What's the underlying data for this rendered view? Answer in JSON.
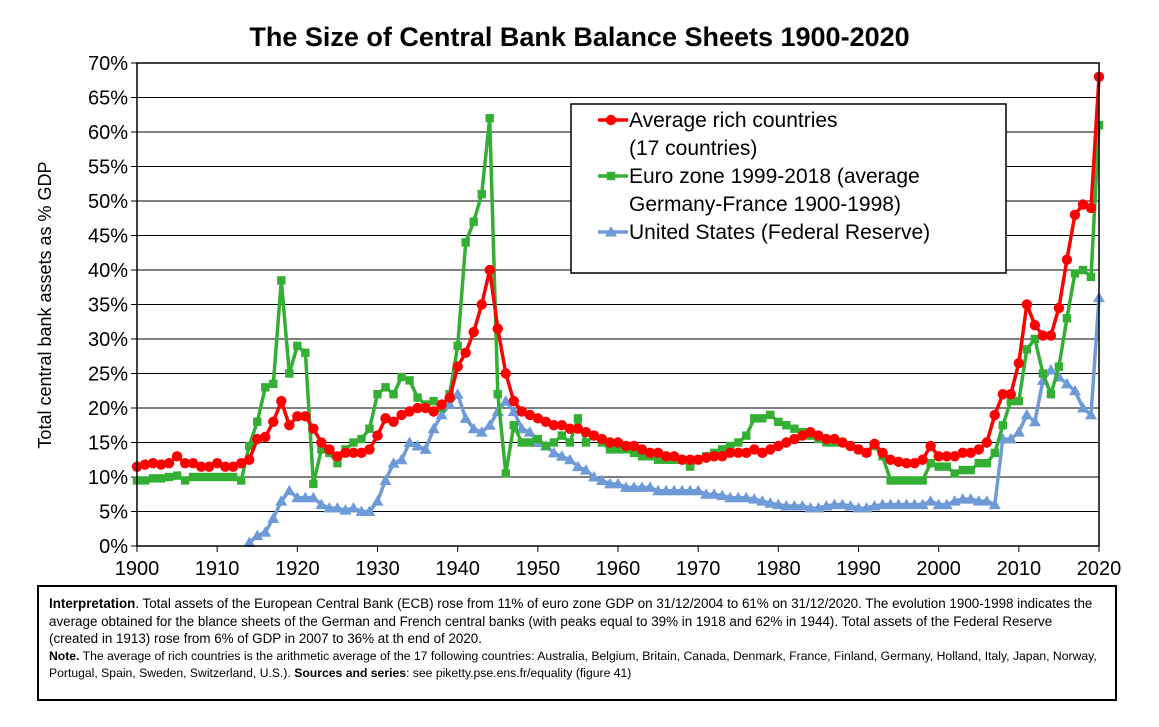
{
  "title": "The Size of Central Bank Balance Sheets 1900-2020",
  "notes": {
    "interpretation_label": "Interpretation",
    "interpretation_text": ". Total assets of the European Central Bank (ECB) rose from 11% of euro zone GDP on 31/12/2004 to 61% on 31/12/2020. The evolution 1900-1998 indicates the average obtained for the blance sheets of the German and French central banks (with peaks equal to 39% in 1918 and 62% in 1944). Total assets of the Federal Reserve (created in 1913) rose from 6% of GDP in 2007 to 36% at th end of 2020.",
    "note_label": "Note.",
    "note_text": " The average of rich countries is the arithmetic average of the 17 following countries: Australia, Belgium, Britain, Canada, Denmark, France, Finland, Germany, Holland, Italy, Japan, Norway, Portugal, Spain, Sweden, Switzerland, U.S.).",
    "sources_label": "Sources and series",
    "sources_text": ": see piketty.pse.ens.fr/equality (figure 41)"
  },
  "chart_data": {
    "type": "line",
    "title": "The Size of Central Bank Balance Sheets 1900-2020",
    "xlabel": "",
    "ylabel": "Total central bank assets as % GDP",
    "xlim": [
      1900,
      2020
    ],
    "ylim": [
      0,
      70
    ],
    "xticks": [
      "1900",
      "1910",
      "1920",
      "1930",
      "1940",
      "1950",
      "1960",
      "1970",
      "1980",
      "1990",
      "2000",
      "2010",
      "2020"
    ],
    "yticks": [
      "0%",
      "5%",
      "10%",
      "15%",
      "20%",
      "25%",
      "30%",
      "35%",
      "40%",
      "45%",
      "50%",
      "55%",
      "60%",
      "65%",
      "70%"
    ],
    "grid": "horizontal",
    "legend_position": "top-right",
    "legend": [
      {
        "lines": [
          "Average rich countries",
          "(17 countries)"
        ],
        "color": "#ff0000",
        "marker": "circle"
      },
      {
        "lines": [
          "Euro zone 1999-2018 (average",
          "Germany-France 1900-1998)"
        ],
        "color": "#33b033",
        "marker": "square"
      },
      {
        "lines": [
          "United States (Federal Reserve)"
        ],
        "color": "#6e9bd8",
        "marker": "triangle"
      }
    ],
    "series": [
      {
        "name": "Average rich countries (17 countries)",
        "color": "#ff0000",
        "marker": "circle",
        "x": [
          1900,
          1901,
          1902,
          1903,
          1904,
          1905,
          1906,
          1907,
          1908,
          1909,
          1910,
          1911,
          1912,
          1913,
          1914,
          1915,
          1916,
          1917,
          1918,
          1919,
          1920,
          1921,
          1922,
          1923,
          1924,
          1925,
          1926,
          1927,
          1928,
          1929,
          1930,
          1931,
          1932,
          1933,
          1934,
          1935,
          1936,
          1937,
          1938,
          1939,
          1940,
          1941,
          1942,
          1943,
          1944,
          1945,
          1946,
          1947,
          1948,
          1949,
          1950,
          1951,
          1952,
          1953,
          1954,
          1955,
          1956,
          1957,
          1958,
          1959,
          1960,
          1961,
          1962,
          1963,
          1964,
          1965,
          1966,
          1967,
          1968,
          1969,
          1970,
          1971,
          1972,
          1973,
          1974,
          1975,
          1976,
          1977,
          1978,
          1979,
          1980,
          1981,
          1982,
          1983,
          1984,
          1985,
          1986,
          1987,
          1988,
          1989,
          1990,
          1991,
          1992,
          1993,
          1994,
          1995,
          1996,
          1997,
          1998,
          1999,
          2000,
          2001,
          2002,
          2003,
          2004,
          2005,
          2006,
          2007,
          2008,
          2009,
          2010,
          2011,
          2012,
          2013,
          2014,
          2015,
          2016,
          2017,
          2018,
          2019,
          2020
        ],
        "y": [
          11.5,
          11.8,
          12.0,
          11.8,
          12.0,
          13.0,
          12.0,
          12.0,
          11.5,
          11.5,
          12.0,
          11.5,
          11.5,
          12.0,
          12.5,
          15.5,
          15.8,
          18.0,
          21.0,
          17.5,
          18.8,
          18.8,
          17.0,
          15.0,
          14.0,
          13.0,
          13.5,
          13.5,
          13.5,
          14.0,
          16.0,
          18.5,
          18.0,
          19.0,
          19.5,
          20.0,
          20.0,
          19.5,
          20.5,
          21.5,
          26.0,
          28.0,
          31.0,
          35.0,
          40.0,
          31.5,
          25.0,
          21.0,
          19.5,
          19.0,
          18.5,
          18.0,
          17.5,
          17.5,
          17.0,
          17.0,
          16.5,
          16.0,
          15.5,
          15.0,
          15.0,
          14.5,
          14.5,
          14.0,
          13.5,
          13.5,
          13.0,
          13.0,
          12.5,
          12.5,
          12.5,
          12.8,
          13.0,
          13.0,
          13.5,
          13.5,
          13.5,
          14.0,
          13.5,
          14.0,
          14.5,
          15.0,
          15.5,
          16.0,
          16.5,
          16.0,
          15.5,
          15.5,
          15.0,
          14.5,
          14.0,
          13.5,
          14.8,
          13.5,
          12.5,
          12.2,
          12.0,
          12.0,
          12.5,
          14.5,
          13.0,
          13.0,
          13.0,
          13.5,
          13.5,
          14.0,
          15.0,
          19.0,
          22.0,
          22.0,
          26.5,
          35.0,
          32.0,
          30.5,
          30.5,
          34.5,
          41.5,
          48.0,
          49.5,
          49.0,
          68.0
        ]
      },
      {
        "name": "Euro zone 1999-2018 (average Germany-France 1900-1998)",
        "color": "#33b033",
        "marker": "square",
        "x": [
          1900,
          1901,
          1902,
          1903,
          1904,
          1905,
          1906,
          1907,
          1908,
          1909,
          1910,
          1911,
          1912,
          1913,
          1914,
          1915,
          1916,
          1917,
          1918,
          1919,
          1920,
          1921,
          1922,
          1923,
          1924,
          1925,
          1926,
          1927,
          1928,
          1929,
          1930,
          1931,
          1932,
          1933,
          1934,
          1935,
          1936,
          1937,
          1938,
          1939,
          1940,
          1941,
          1942,
          1943,
          1944,
          1945,
          1946,
          1947,
          1948,
          1949,
          1950,
          1951,
          1952,
          1953,
          1954,
          1955,
          1956,
          1957,
          1958,
          1959,
          1960,
          1961,
          1962,
          1963,
          1964,
          1965,
          1966,
          1967,
          1968,
          1969,
          1970,
          1971,
          1972,
          1973,
          1974,
          1975,
          1976,
          1977,
          1978,
          1979,
          1980,
          1981,
          1982,
          1983,
          1984,
          1985,
          1986,
          1987,
          1988,
          1989,
          1990,
          1991,
          1992,
          1993,
          1994,
          1995,
          1996,
          1997,
          1998,
          1999,
          2000,
          2001,
          2002,
          2003,
          2004,
          2005,
          2006,
          2007,
          2008,
          2009,
          2010,
          2011,
          2012,
          2013,
          2014,
          2015,
          2016,
          2017,
          2018,
          2019,
          2020
        ],
        "y": [
          9.5,
          9.5,
          9.8,
          9.8,
          10.0,
          10.2,
          9.5,
          10.0,
          10.0,
          10.0,
          10.0,
          10.0,
          10.0,
          9.5,
          14.5,
          18.0,
          23.0,
          23.5,
          38.5,
          25.0,
          29.0,
          28.0,
          9.0,
          14.0,
          13.5,
          12.0,
          14.0,
          15.0,
          15.5,
          17.0,
          22.0,
          23.0,
          22.0,
          24.5,
          24.0,
          21.5,
          20.5,
          21.0,
          20.0,
          22.0,
          29.0,
          44.0,
          47.0,
          51.0,
          62.0,
          22.0,
          10.5,
          17.5,
          15.0,
          15.0,
          15.5,
          14.5,
          15.0,
          16.0,
          15.0,
          18.5,
          15.0,
          16.0,
          15.0,
          14.0,
          14.0,
          14.0,
          13.5,
          13.0,
          13.0,
          12.5,
          12.5,
          12.5,
          12.5,
          11.5,
          12.5,
          13.0,
          13.5,
          14.0,
          14.5,
          15.0,
          16.0,
          18.5,
          18.5,
          19.0,
          18.0,
          17.5,
          17.0,
          16.5,
          16.0,
          15.5,
          15.0,
          15.0,
          15.0,
          14.5,
          14.0,
          13.5,
          14.5,
          13.0,
          9.5,
          9.5,
          9.5,
          9.5,
          9.5,
          12.0,
          11.5,
          11.5,
          10.5,
          11.0,
          11.0,
          12.0,
          12.0,
          13.5,
          17.5,
          21.0,
          21.0,
          28.5,
          30.0,
          25.0,
          22.0,
          26.0,
          33.0,
          39.5,
          40.0,
          39.0,
          61.0
        ]
      },
      {
        "name": "United States (Federal Reserve)",
        "color": "#6e9bd8",
        "marker": "triangle",
        "x": [
          1914,
          1915,
          1916,
          1917,
          1918,
          1919,
          1920,
          1921,
          1922,
          1923,
          1924,
          1925,
          1926,
          1927,
          1928,
          1929,
          1930,
          1931,
          1932,
          1933,
          1934,
          1935,
          1936,
          1937,
          1938,
          1939,
          1940,
          1941,
          1942,
          1943,
          1944,
          1945,
          1946,
          1947,
          1948,
          1949,
          1950,
          1951,
          1952,
          1953,
          1954,
          1955,
          1956,
          1957,
          1958,
          1959,
          1960,
          1961,
          1962,
          1963,
          1964,
          1965,
          1966,
          1967,
          1968,
          1969,
          1970,
          1971,
          1972,
          1973,
          1974,
          1975,
          1976,
          1977,
          1978,
          1979,
          1980,
          1981,
          1982,
          1983,
          1984,
          1985,
          1986,
          1987,
          1988,
          1989,
          1990,
          1991,
          1992,
          1993,
          1994,
          1995,
          1996,
          1997,
          1998,
          1999,
          2000,
          2001,
          2002,
          2003,
          2004,
          2005,
          2006,
          2007,
          2008,
          2009,
          2010,
          2011,
          2012,
          2013,
          2014,
          2015,
          2016,
          2017,
          2018,
          2019,
          2020
        ],
        "y": [
          0.5,
          1.5,
          2.0,
          4.0,
          6.5,
          8.0,
          7.0,
          7.0,
          7.0,
          6.0,
          5.5,
          5.5,
          5.2,
          5.5,
          5.0,
          5.0,
          6.5,
          9.5,
          12.0,
          12.5,
          15.0,
          14.5,
          14.0,
          17.0,
          19.0,
          20.5,
          22.0,
          18.5,
          17.0,
          16.5,
          17.5,
          19.5,
          21.0,
          19.5,
          17.0,
          16.5,
          15.0,
          14.5,
          13.5,
          13.0,
          12.5,
          11.5,
          11.0,
          10.0,
          9.5,
          9.0,
          9.0,
          8.5,
          8.5,
          8.5,
          8.5,
          8.0,
          8.0,
          8.0,
          8.0,
          8.0,
          8.0,
          7.5,
          7.5,
          7.3,
          7.0,
          7.0,
          7.0,
          6.8,
          6.5,
          6.2,
          6.0,
          5.8,
          5.8,
          5.8,
          5.5,
          5.5,
          5.8,
          6.0,
          6.0,
          5.8,
          5.5,
          5.5,
          5.8,
          6.0,
          6.0,
          6.0,
          6.0,
          6.0,
          6.0,
          6.5,
          6.0,
          6.0,
          6.5,
          6.8,
          6.8,
          6.5,
          6.5,
          6.0,
          15.5,
          15.5,
          16.5,
          19.0,
          18.0,
          24.0,
          25.5,
          24.5,
          23.5,
          22.5,
          20.0,
          19.0,
          36.0
        ]
      }
    ]
  }
}
